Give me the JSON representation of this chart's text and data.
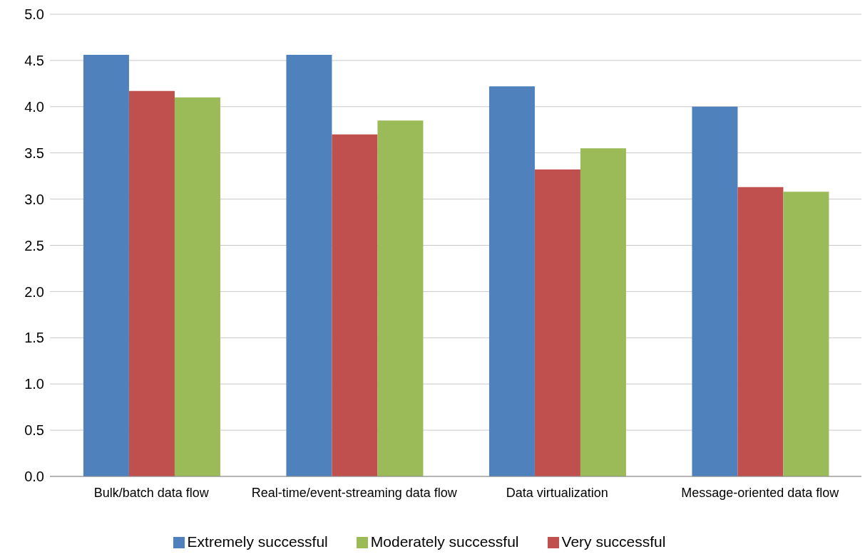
{
  "chart_data": {
    "type": "bar",
    "categories": [
      "Bulk/batch data flow",
      "Real-time/event-streaming data flow",
      "Data virtualization",
      "Message-oriented data flow"
    ],
    "series": [
      {
        "name": "Extremely successful",
        "color": "#4f81bd",
        "values": [
          4.56,
          4.56,
          4.22,
          4.0
        ]
      },
      {
        "name": "Very successful",
        "color": "#c0504d",
        "values": [
          4.17,
          3.7,
          3.32,
          3.13
        ]
      },
      {
        "name": "Moderately successful",
        "color": "#9bbb59",
        "values": [
          4.1,
          3.85,
          3.55,
          3.08
        ]
      }
    ],
    "ylim": [
      0,
      5
    ],
    "yticks": [
      {
        "value": 0,
        "label": "0.0"
      },
      {
        "value": 0.5,
        "label": "0.5"
      },
      {
        "value": 1,
        "label": "1.0"
      },
      {
        "value": 1.5,
        "label": "1.5"
      },
      {
        "value": 2,
        "label": "2.0"
      },
      {
        "value": 2.5,
        "label": "2.5"
      },
      {
        "value": 3,
        "label": "3.0"
      },
      {
        "value": 3.5,
        "label": "3.5"
      },
      {
        "value": 4,
        "label": "4.0"
      },
      {
        "value": 4.5,
        "label": "4.5"
      },
      {
        "value": 5,
        "label": "5.0"
      }
    ],
    "grid": "y",
    "legend": "bottom"
  }
}
